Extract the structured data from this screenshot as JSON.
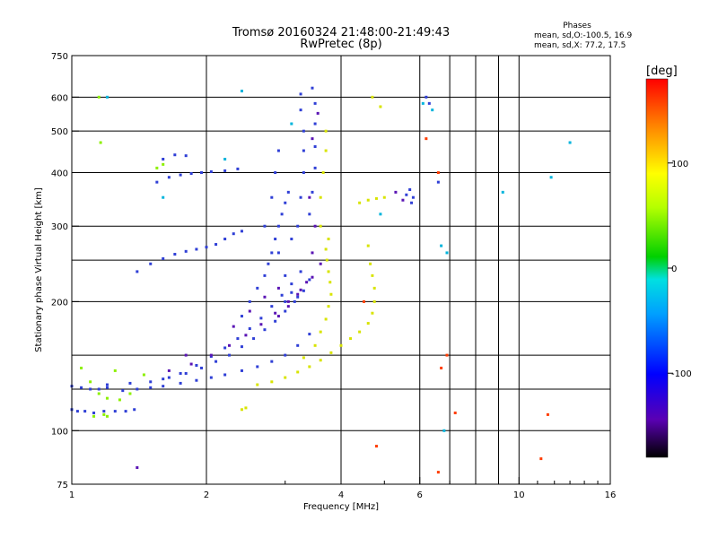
{
  "chart_data": {
    "type": "scatter",
    "title": "Tromsø 20160324 21:48:00-21:49:43",
    "subtitle": "RwPretec (8p)",
    "xlabel": "Frequency [MHz]",
    "ylabel": "Stationary phase Virtual Height [km]",
    "x_scale": "log",
    "y_scale": "log",
    "xlim": [
      1,
      16
    ],
    "ylim": [
      75,
      750
    ],
    "x_ticks": [
      1,
      2,
      4,
      6,
      10,
      16
    ],
    "x_tick_labels": [
      "1",
      "2",
      "4",
      "6",
      "10",
      "16"
    ],
    "x_gridlines": [
      2,
      4,
      6,
      7,
      8,
      9,
      10
    ],
    "x_minor_ticks": [
      3,
      5,
      7,
      8,
      9,
      11,
      12,
      13,
      14,
      15
    ],
    "y_ticks": [
      75,
      100,
      200,
      300,
      400,
      500,
      600,
      750
    ],
    "y_tick_labels": [
      "75",
      "100",
      "200",
      "300",
      "400",
      "500",
      "600",
      "750"
    ],
    "y_gridlines": [
      100,
      125,
      150,
      200,
      250,
      300,
      400,
      500,
      600
    ],
    "grid": true,
    "legend": {
      "title": "Phases",
      "lines": [
        "mean, sd,O:-100.5, 16.9",
        "mean, sd,X:  77.2, 17.5"
      ],
      "placement": "top-right"
    },
    "colorbar": {
      "label": "[deg]",
      "range": [
        -180,
        180
      ],
      "ticks": [
        100,
        0,
        -100
      ],
      "tick_labels": [
        "100",
        "0",
        "-100"
      ],
      "colormap": "rainbow",
      "stops": [
        "#000000",
        "#5a00b4",
        "#0000ff",
        "#00a0ff",
        "#00e0e0",
        "#00d000",
        "#b4ff00",
        "#ffff00",
        "#ff8000",
        "#ff0000"
      ]
    },
    "series": [
      {
        "phase": -110,
        "color": "#2f3fd6",
        "points": [
          [
            1.0,
            112
          ],
          [
            1.03,
            111
          ],
          [
            1.07,
            111
          ],
          [
            1.12,
            110
          ],
          [
            1.18,
            111
          ],
          [
            1.25,
            111
          ],
          [
            1.32,
            111
          ],
          [
            1.38,
            112
          ],
          [
            1.0,
            127
          ],
          [
            1.05,
            126
          ],
          [
            1.1,
            125
          ],
          [
            1.15,
            125
          ],
          [
            1.2,
            126
          ],
          [
            1.3,
            124
          ],
          [
            1.4,
            125
          ],
          [
            1.5,
            126
          ],
          [
            1.6,
            127
          ],
          [
            1.75,
            129
          ],
          [
            1.9,
            131
          ],
          [
            2.05,
            133
          ],
          [
            2.2,
            135
          ],
          [
            2.4,
            138
          ],
          [
            2.6,
            141
          ],
          [
            2.8,
            145
          ],
          [
            3.0,
            150
          ],
          [
            3.2,
            158
          ],
          [
            3.4,
            168
          ],
          [
            1.2,
            128
          ],
          [
            1.35,
            129
          ],
          [
            1.5,
            130
          ],
          [
            1.65,
            133
          ],
          [
            1.8,
            136
          ],
          [
            1.95,
            140
          ],
          [
            2.1,
            145
          ],
          [
            2.25,
            150
          ],
          [
            2.4,
            157
          ],
          [
            2.55,
            164
          ],
          [
            2.7,
            172
          ],
          [
            2.85,
            180
          ],
          [
            3.0,
            190
          ],
          [
            3.15,
            200
          ],
          [
            3.3,
            212
          ],
          [
            3.4,
            225
          ],
          [
            1.6,
            132
          ],
          [
            1.75,
            136
          ],
          [
            1.9,
            142
          ],
          [
            2.05,
            149
          ],
          [
            2.2,
            156
          ],
          [
            2.35,
            164
          ],
          [
            2.5,
            173
          ],
          [
            2.65,
            183
          ],
          [
            2.8,
            195
          ],
          [
            2.95,
            207
          ],
          [
            3.1,
            220
          ],
          [
            3.25,
            235
          ],
          [
            2.4,
            185
          ],
          [
            2.5,
            200
          ],
          [
            2.6,
            215
          ],
          [
            2.7,
            230
          ],
          [
            2.75,
            245
          ],
          [
            2.8,
            260
          ],
          [
            2.85,
            280
          ],
          [
            2.9,
            300
          ],
          [
            2.95,
            320
          ],
          [
            3.0,
            340
          ],
          [
            3.05,
            360
          ],
          [
            1.4,
            235
          ],
          [
            1.5,
            245
          ],
          [
            1.6,
            252
          ],
          [
            1.7,
            258
          ],
          [
            1.8,
            262
          ],
          [
            1.9,
            265
          ],
          [
            2.0,
            268
          ],
          [
            2.1,
            272
          ],
          [
            2.2,
            280
          ],
          [
            2.3,
            288
          ],
          [
            2.4,
            292
          ],
          [
            1.55,
            380
          ],
          [
            1.65,
            390
          ],
          [
            1.75,
            395
          ],
          [
            1.85,
            398
          ],
          [
            1.95,
            400
          ],
          [
            2.05,
            402
          ],
          [
            2.2,
            404
          ],
          [
            2.35,
            408
          ],
          [
            1.6,
            430
          ],
          [
            1.7,
            440
          ],
          [
            1.8,
            438
          ],
          [
            3.4,
            320
          ],
          [
            3.45,
            360
          ],
          [
            3.5,
            410
          ],
          [
            3.5,
            460
          ],
          [
            3.5,
            520
          ],
          [
            3.5,
            580
          ],
          [
            3.45,
            630
          ],
          [
            3.2,
            300
          ],
          [
            3.25,
            350
          ],
          [
            3.3,
            400
          ],
          [
            3.3,
            450
          ],
          [
            3.3,
            500
          ],
          [
            3.25,
            560
          ],
          [
            3.25,
            610
          ],
          [
            2.7,
            300
          ],
          [
            2.8,
            350
          ],
          [
            2.85,
            400
          ],
          [
            2.9,
            450
          ],
          [
            3.0,
            200
          ],
          [
            3.1,
            210
          ],
          [
            3.2,
            205
          ],
          [
            3.0,
            230
          ],
          [
            2.9,
            260
          ],
          [
            3.1,
            280
          ],
          [
            5.6,
            355
          ],
          [
            5.7,
            365
          ],
          [
            5.8,
            350
          ],
          [
            5.75,
            340
          ],
          [
            6.2,
            600
          ],
          [
            6.3,
            580
          ],
          [
            6.6,
            380
          ]
        ]
      },
      {
        "phase": -140,
        "color": "#5a14b4",
        "points": [
          [
            1.65,
            138
          ],
          [
            1.85,
            143
          ],
          [
            2.05,
            150
          ],
          [
            2.25,
            158
          ],
          [
            2.45,
            167
          ],
          [
            2.65,
            177
          ],
          [
            2.85,
            188
          ],
          [
            3.05,
            200
          ],
          [
            3.25,
            213
          ],
          [
            3.45,
            228
          ],
          [
            3.6,
            245
          ],
          [
            2.9,
            185
          ],
          [
            3.05,
            195
          ],
          [
            3.2,
            208
          ],
          [
            3.35,
            222
          ],
          [
            2.3,
            175
          ],
          [
            2.5,
            190
          ],
          [
            2.7,
            205
          ],
          [
            2.9,
            215
          ],
          [
            3.45,
            260
          ],
          [
            3.5,
            300
          ],
          [
            3.4,
            350
          ],
          [
            3.45,
            480
          ],
          [
            3.55,
            550
          ],
          [
            5.3,
            360
          ],
          [
            5.5,
            345
          ],
          [
            1.4,
            82
          ],
          [
            1.8,
            150
          ]
        ]
      },
      {
        "phase": 90,
        "color": "#d8e400",
        "points": [
          [
            2.6,
            128
          ],
          [
            2.8,
            130
          ],
          [
            3.0,
            133
          ],
          [
            3.2,
            137
          ],
          [
            3.4,
            141
          ],
          [
            3.6,
            146
          ],
          [
            3.8,
            152
          ],
          [
            4.0,
            158
          ],
          [
            4.2,
            164
          ],
          [
            4.4,
            170
          ],
          [
            4.6,
            178
          ],
          [
            4.7,
            188
          ],
          [
            4.75,
            200
          ],
          [
            4.75,
            215
          ],
          [
            4.7,
            230
          ],
          [
            4.65,
            245
          ],
          [
            3.3,
            148
          ],
          [
            3.5,
            158
          ],
          [
            3.6,
            170
          ],
          [
            3.7,
            182
          ],
          [
            3.75,
            195
          ],
          [
            3.8,
            208
          ],
          [
            3.78,
            222
          ],
          [
            3.75,
            235
          ],
          [
            3.72,
            250
          ],
          [
            3.7,
            265
          ],
          [
            3.75,
            280
          ],
          [
            3.6,
            300
          ],
          [
            3.6,
            350
          ],
          [
            3.65,
            400
          ],
          [
            3.7,
            450
          ],
          [
            3.7,
            500
          ],
          [
            4.4,
            340
          ],
          [
            4.6,
            345
          ],
          [
            4.8,
            348
          ],
          [
            5.0,
            350
          ],
          [
            4.6,
            270
          ],
          [
            4.9,
            570
          ],
          [
            4.7,
            600
          ],
          [
            2.4,
            112
          ],
          [
            2.45,
            113
          ]
        ]
      },
      {
        "phase": 65,
        "color": "#8cf000",
        "points": [
          [
            1.05,
            140
          ],
          [
            1.1,
            130
          ],
          [
            1.15,
            122
          ],
          [
            1.2,
            119
          ],
          [
            1.28,
            118
          ],
          [
            1.35,
            122
          ],
          [
            1.45,
            135
          ],
          [
            1.25,
            138
          ],
          [
            1.12,
            108
          ],
          [
            1.18,
            109
          ],
          [
            1.2,
            108
          ],
          [
            1.15,
            600
          ],
          [
            1.16,
            470
          ],
          [
            1.55,
            410
          ],
          [
            1.6,
            418
          ]
        ]
      },
      {
        "phase": -20,
        "color": "#00b4dc",
        "points": [
          [
            1.2,
            600
          ],
          [
            1.6,
            350
          ],
          [
            2.2,
            430
          ],
          [
            2.4,
            620
          ],
          [
            3.1,
            520
          ],
          [
            4.9,
            320
          ],
          [
            6.1,
            580
          ],
          [
            6.4,
            560
          ],
          [
            6.7,
            270
          ],
          [
            6.9,
            260
          ],
          [
            6.8,
            100
          ],
          [
            9.2,
            360
          ],
          [
            11.8,
            390
          ],
          [
            13.0,
            470
          ]
        ]
      },
      {
        "phase": 150,
        "color": "#ff3c00",
        "points": [
          [
            4.5,
            200
          ],
          [
            4.8,
            92
          ],
          [
            6.7,
            140
          ],
          [
            6.9,
            150
          ],
          [
            7.2,
            110
          ],
          [
            6.6,
            80
          ],
          [
            11.6,
            109
          ],
          [
            11.2,
            86
          ],
          [
            6.2,
            480
          ],
          [
            6.6,
            400
          ]
        ]
      }
    ]
  }
}
